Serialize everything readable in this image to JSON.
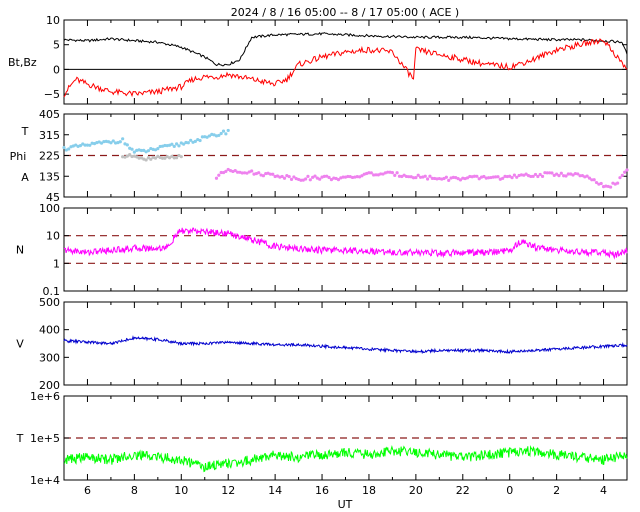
{
  "title": "2024 /  8 / 16   05:00 -- 8 / 17   05:00 ( ACE )",
  "xlabel": "UT",
  "x_ticks": [
    "6",
    "8",
    "10",
    "12",
    "14",
    "16",
    "18",
    "20",
    "22",
    "0",
    "2",
    "4"
  ],
  "colors": {
    "bt": "#000000",
    "bz": "#ff0000",
    "theta": "#87ceeb",
    "phi_pre": "#c0c0c0",
    "phi": "#ee82ee",
    "density": "#ff00ff",
    "speed": "#0000cd",
    "temp": "#00ff00",
    "ref": "#8b1a1a"
  },
  "chart_data": [
    {
      "type": "line",
      "panel": "magnetic-field",
      "ylabel": "Bt,Bz",
      "ylim": [
        -7,
        10
      ],
      "y_ticks": [
        "10",
        "5",
        "0",
        "−5"
      ],
      "x_range_hours": [
        5,
        29
      ],
      "series": [
        {
          "key": "bt",
          "x": [
            5,
            6,
            7,
            8,
            9,
            10,
            10.5,
            11,
            11.5,
            12,
            12.5,
            13,
            14,
            16,
            18,
            20,
            22,
            24,
            26,
            27,
            28,
            28.8,
            29
          ],
          "y": [
            6,
            5.8,
            6.2,
            5.8,
            5.5,
            4.5,
            3.5,
            2.5,
            1,
            1,
            2,
            6.5,
            7,
            7.2,
            6.8,
            6.5,
            6.5,
            6.2,
            6,
            6,
            5.8,
            5.5,
            3
          ]
        },
        {
          "key": "bz",
          "x": [
            5,
            5.5,
            6,
            7,
            8,
            9,
            10,
            10.5,
            11,
            11.5,
            12,
            13,
            14,
            14.5,
            15,
            16,
            17,
            18,
            19,
            19.9,
            20,
            21,
            22,
            23,
            24,
            25,
            26,
            27,
            28,
            28.5,
            29
          ],
          "y": [
            -5,
            -2,
            -3,
            -4.5,
            -5,
            -4.5,
            -3.5,
            -2,
            -1.5,
            -1.5,
            -1,
            -2,
            -3,
            -2,
            1,
            2.5,
            3.5,
            4,
            3.5,
            -2,
            4,
            3,
            2,
            1,
            0.5,
            2,
            4,
            5,
            6,
            3,
            0
          ]
        }
      ]
    },
    {
      "type": "scatter",
      "panel": "theta-phi",
      "ylabel_parts": [
        "T",
        "Phi",
        "A"
      ],
      "ylim": [
        45,
        405
      ],
      "y_ticks": [
        "405",
        "315",
        "225",
        "135",
        "45"
      ],
      "ref_lines": [
        225
      ],
      "series": [
        {
          "key": "theta",
          "x": [
            5,
            6,
            7,
            7.5,
            8,
            8.5,
            9,
            9.5,
            10,
            10.5,
            11,
            11.5,
            12
          ],
          "y": [
            255,
            270,
            285,
            290,
            240,
            245,
            255,
            265,
            275,
            290,
            300,
            315,
            330
          ]
        },
        {
          "key": "phi_pre",
          "x": [
            7.5,
            8,
            8.5,
            9,
            9.5,
            10
          ],
          "y": [
            220,
            225,
            210,
            220,
            215,
            225
          ]
        },
        {
          "key": "phi",
          "x": [
            11.5,
            12,
            13,
            14,
            15,
            16,
            17,
            18,
            19,
            20,
            21,
            22,
            23,
            24,
            25,
            26,
            27,
            27.5,
            28,
            28.5,
            29
          ],
          "y": [
            130,
            165,
            150,
            140,
            125,
            130,
            125,
            145,
            145,
            135,
            125,
            125,
            130,
            130,
            140,
            145,
            140,
            120,
            90,
            100,
            160
          ]
        }
      ]
    },
    {
      "type": "line",
      "panel": "density",
      "ylabel": "N",
      "ylim": [
        0.1,
        100
      ],
      "log": true,
      "y_ticks": [
        "100",
        "10",
        "1",
        "0.1"
      ],
      "ref_lines": [
        1,
        10
      ],
      "series": [
        {
          "key": "density",
          "x": [
            5,
            6,
            7,
            8,
            9,
            9.5,
            10,
            11,
            12,
            13,
            14,
            15,
            16,
            17,
            18,
            19,
            20,
            21,
            22,
            23,
            24,
            24.5,
            25,
            26,
            27,
            28,
            28.5,
            29
          ],
          "y": [
            3,
            2.5,
            3,
            3.5,
            3.5,
            4,
            15,
            14,
            12,
            7,
            4,
            3.5,
            3,
            3,
            2.8,
            2.5,
            2.5,
            2.3,
            2.5,
            2.5,
            2.8,
            6,
            4,
            3,
            2.5,
            2.5,
            2,
            3
          ]
        }
      ]
    },
    {
      "type": "line",
      "panel": "speed",
      "ylabel": "V",
      "ylim": [
        200,
        500
      ],
      "y_ticks": [
        "500",
        "400",
        "300",
        "200"
      ],
      "series": [
        {
          "key": "speed",
          "x": [
            5,
            6,
            7,
            8,
            9,
            10,
            11,
            12,
            13,
            14,
            15,
            16,
            17,
            18,
            19,
            20,
            21,
            22,
            23,
            24,
            25,
            26,
            27,
            28,
            29
          ],
          "y": [
            360,
            355,
            350,
            370,
            365,
            350,
            350,
            355,
            350,
            345,
            345,
            340,
            335,
            330,
            325,
            320,
            325,
            325,
            325,
            320,
            325,
            330,
            335,
            340,
            345
          ]
        }
      ]
    },
    {
      "type": "line",
      "panel": "temperature",
      "ylabel": "T",
      "ylim": [
        10000,
        1000000
      ],
      "log": true,
      "y_ticks": [
        "1e+6",
        "1e+5",
        "1e+4"
      ],
      "ref_lines": [
        100000
      ],
      "series": [
        {
          "key": "temp",
          "x": [
            5,
            6,
            7,
            8,
            9,
            10,
            11,
            12,
            13,
            14,
            15,
            16,
            17,
            18,
            19,
            20,
            21,
            22,
            23,
            24,
            25,
            26,
            27,
            28,
            29
          ],
          "y": [
            30000,
            35000,
            30000,
            40000,
            35000,
            30000,
            20000,
            25000,
            30000,
            40000,
            35000,
            40000,
            45000,
            40000,
            50000,
            45000,
            40000,
            35000,
            40000,
            45000,
            50000,
            40000,
            35000,
            30000,
            40000
          ]
        }
      ]
    }
  ]
}
